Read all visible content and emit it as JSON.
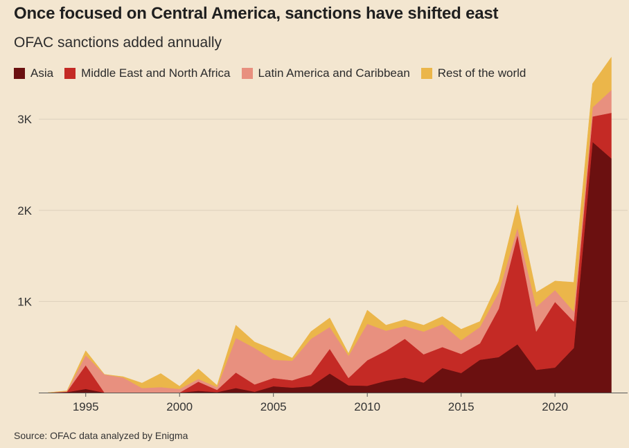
{
  "title": "Once focused on Central America, sanctions have shifted east",
  "subtitle": "OFAC sanctions added annually",
  "source": "Source: OFAC data analyzed by Enigma",
  "chart_data": {
    "type": "area",
    "stacked": true,
    "title": "Once focused on Central America, sanctions have shifted east",
    "subtitle": "OFAC sanctions added annually",
    "xlabel": "",
    "ylabel": "",
    "xlim": [
      1992.5,
      2023.5
    ],
    "ylim": [
      0,
      3700
    ],
    "grid": true,
    "legend": "top-left",
    "x": [
      1993,
      1994,
      1995,
      1996,
      1997,
      1998,
      1999,
      2000,
      2001,
      2002,
      2003,
      2004,
      2005,
      2006,
      2007,
      2008,
      2009,
      2010,
      2011,
      2012,
      2013,
      2014,
      2015,
      2016,
      2017,
      2018,
      2019,
      2020,
      2021,
      2022,
      2023
    ],
    "x_tick_labels": [
      "1995",
      "2000",
      "2005",
      "2010",
      "2015",
      "2020"
    ],
    "x_ticks": [
      1995,
      2000,
      2005,
      2010,
      2015,
      2020
    ],
    "y_tick_labels": [
      "1K",
      "2K",
      "3K"
    ],
    "y_ticks": [
      1000,
      2000,
      3000
    ],
    "series": [
      {
        "name": "Asia",
        "color": "#6b1010",
        "values": [
          0,
          5,
          40,
          0,
          0,
          0,
          0,
          0,
          20,
          5,
          50,
          10,
          70,
          55,
          70,
          210,
          80,
          75,
          130,
          165,
          110,
          270,
          215,
          360,
          390,
          530,
          250,
          275,
          490,
          2750,
          2570
        ]
      },
      {
        "name": "Middle East and North Africa",
        "color": "#c42a25",
        "values": [
          0,
          5,
          260,
          0,
          0,
          0,
          0,
          0,
          100,
          25,
          170,
          80,
          90,
          80,
          130,
          270,
          80,
          280,
          330,
          425,
          310,
          230,
          210,
          180,
          530,
          1200,
          420,
          720,
          290,
          280,
          500
        ]
      },
      {
        "name": "Latin America and Caribbean",
        "color": "#e8907f",
        "values": [
          0,
          5,
          110,
          200,
          165,
          50,
          60,
          40,
          30,
          30,
          380,
          400,
          200,
          215,
          390,
          240,
          245,
          400,
          220,
          140,
          250,
          250,
          150,
          180,
          180,
          80,
          270,
          130,
          110,
          100,
          250
        ]
      },
      {
        "name": "Rest of the world",
        "color": "#ebb64a",
        "values": [
          0,
          5,
          50,
          0,
          10,
          55,
          150,
          30,
          110,
          20,
          140,
          65,
          110,
          30,
          80,
          100,
          25,
          150,
          60,
          70,
          70,
          85,
          120,
          60,
          120,
          250,
          160,
          100,
          320,
          260,
          360
        ]
      }
    ]
  }
}
